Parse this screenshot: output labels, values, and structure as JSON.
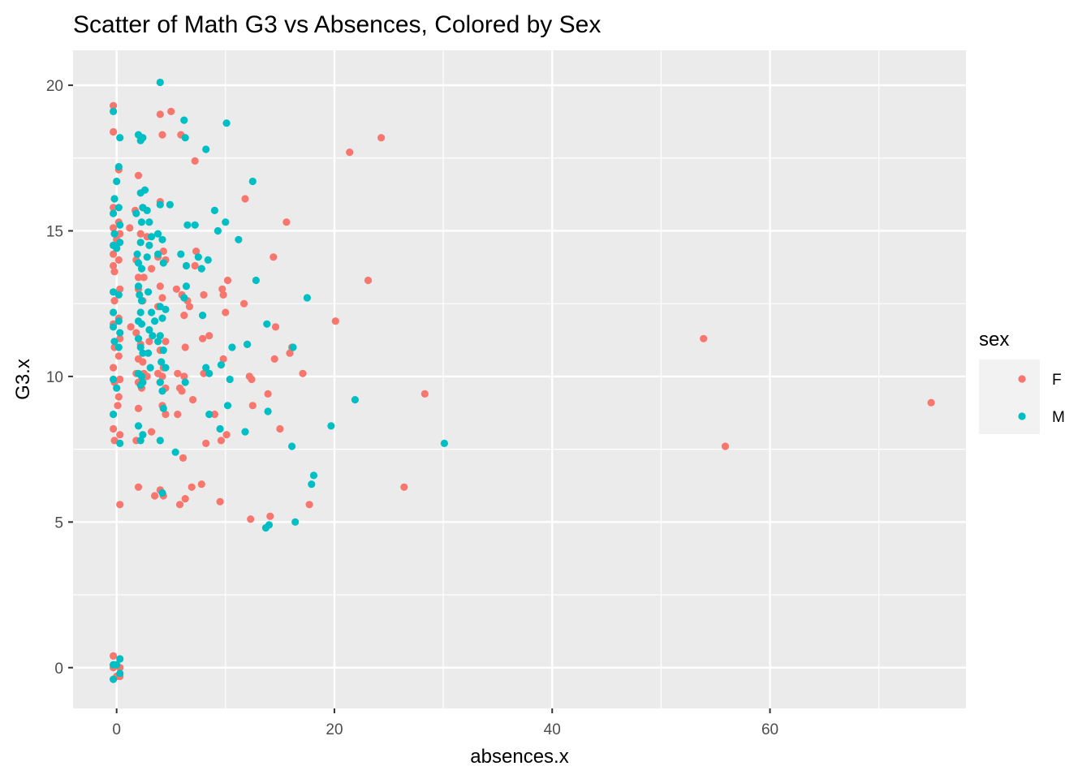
{
  "chart_data": {
    "type": "scatter",
    "title": "Scatter of Math G3 vs Absences, Colored by Sex",
    "xlabel": "absences.x",
    "ylabel": "G3.x",
    "xlim": [
      -4,
      78
    ],
    "ylim": [
      -1.4,
      21.2
    ],
    "x_ticks": [
      0,
      20,
      40,
      60
    ],
    "y_ticks": [
      0,
      5,
      10,
      15,
      20
    ],
    "grid": true,
    "background": "#EBEBEB",
    "legend": {
      "title": "sex",
      "position": "right"
    },
    "series": [
      {
        "name": "F",
        "color": "#F8766D",
        "points": [
          [
            -0.3,
            19.3
          ],
          [
            -0.3,
            18.4
          ],
          [
            0.2,
            17.1
          ],
          [
            -0.3,
            15.8
          ],
          [
            0.2,
            15.3
          ],
          [
            -0.3,
            15.1
          ],
          [
            0.3,
            14.9
          ],
          [
            0.0,
            14.7
          ],
          [
            -0.3,
            14.2
          ],
          [
            0.2,
            14.0
          ],
          [
            -0.3,
            13.8
          ],
          [
            -0.2,
            13.6
          ],
          [
            0.3,
            13.0
          ],
          [
            -0.2,
            12.6
          ],
          [
            0.2,
            12.0
          ],
          [
            -0.3,
            11.8
          ],
          [
            0.3,
            11.3
          ],
          [
            -0.2,
            11.0
          ],
          [
            0.2,
            10.7
          ],
          [
            -0.3,
            10.3
          ],
          [
            0.3,
            9.9
          ],
          [
            -0.2,
            9.8
          ],
          [
            0.2,
            9.3
          ],
          [
            0.1,
            9.0
          ],
          [
            -0.3,
            8.2
          ],
          [
            0.3,
            8.0
          ],
          [
            -0.2,
            7.8
          ],
          [
            0.3,
            5.6
          ],
          [
            -0.3,
            0.4
          ],
          [
            0.3,
            -0.3
          ],
          [
            0.0,
            -0.3
          ],
          [
            -0.3,
            0.0
          ],
          [
            0.3,
            0.0
          ],
          [
            1.2,
            15.1
          ],
          [
            1.7,
            15.7
          ],
          [
            2.0,
            16.9
          ],
          [
            2.2,
            14.9
          ],
          [
            2.4,
            15.8
          ],
          [
            1.8,
            14.0
          ],
          [
            2.0,
            13.4
          ],
          [
            2.5,
            13.4
          ],
          [
            2.0,
            13.0
          ],
          [
            2.4,
            12.6
          ],
          [
            1.3,
            11.7
          ],
          [
            1.8,
            11.5
          ],
          [
            2.2,
            11.1
          ],
          [
            2.0,
            10.6
          ],
          [
            2.4,
            10.5
          ],
          [
            1.8,
            10.1
          ],
          [
            2.5,
            10.1
          ],
          [
            2.0,
            9.8
          ],
          [
            2.3,
            9.6
          ],
          [
            2.0,
            8.9
          ],
          [
            1.8,
            7.8
          ],
          [
            2.0,
            6.2
          ],
          [
            2.8,
            14.8
          ],
          [
            3.2,
            13.7
          ],
          [
            3.0,
            11.2
          ],
          [
            2.8,
            10.0
          ],
          [
            3.2,
            8.1
          ],
          [
            3.5,
            5.9
          ],
          [
            4.0,
            19.0
          ],
          [
            4.2,
            18.3
          ],
          [
            4.0,
            16.0
          ],
          [
            4.3,
            14.3
          ],
          [
            3.8,
            14.1
          ],
          [
            4.5,
            14.0
          ],
          [
            4.0,
            13.1
          ],
          [
            4.2,
            12.7
          ],
          [
            3.8,
            12.4
          ],
          [
            4.5,
            11.2
          ],
          [
            4.0,
            10.9
          ],
          [
            4.3,
            10.3
          ],
          [
            3.8,
            10.1
          ],
          [
            4.2,
            10.0
          ],
          [
            4.0,
            9.8
          ],
          [
            4.5,
            9.6
          ],
          [
            4.2,
            9.0
          ],
          [
            4.5,
            8.7
          ],
          [
            4.0,
            6.1
          ],
          [
            4.3,
            5.9
          ],
          [
            5.0,
            19.1
          ],
          [
            5.5,
            13.0
          ],
          [
            5.6,
            10.1
          ],
          [
            5.8,
            9.6
          ],
          [
            5.6,
            8.7
          ],
          [
            5.8,
            5.6
          ],
          [
            5.9,
            18.3
          ],
          [
            6.0,
            12.8
          ],
          [
            6.2,
            12.1
          ],
          [
            6.3,
            11.0
          ],
          [
            6.2,
            10.0
          ],
          [
            6.0,
            9.5
          ],
          [
            6.1,
            7.2
          ],
          [
            6.3,
            5.8
          ],
          [
            6.5,
            12.6
          ],
          [
            6.7,
            12.4
          ],
          [
            6.9,
            6.2
          ],
          [
            7.0,
            9.2
          ],
          [
            7.2,
            17.4
          ],
          [
            7.3,
            14.3
          ],
          [
            7.2,
            13.8
          ],
          [
            7.9,
            11.3
          ],
          [
            7.8,
            6.3
          ],
          [
            8.0,
            12.8
          ],
          [
            8.0,
            10.1
          ],
          [
            8.2,
            7.7
          ],
          [
            8.5,
            11.4
          ],
          [
            9.0,
            8.7
          ],
          [
            9.5,
            5.7
          ],
          [
            9.6,
            7.8
          ],
          [
            9.7,
            13.0
          ],
          [
            9.8,
            12.8
          ],
          [
            9.8,
            10.6
          ],
          [
            10.0,
            12.2
          ],
          [
            10.1,
            8.0
          ],
          [
            10.2,
            13.3
          ],
          [
            11.7,
            12.5
          ],
          [
            11.8,
            16.1
          ],
          [
            12.0,
            11.1
          ],
          [
            12.2,
            10.0
          ],
          [
            12.4,
            9.9
          ],
          [
            12.5,
            9.0
          ],
          [
            12.3,
            5.1
          ],
          [
            13.9,
            9.4
          ],
          [
            14.1,
            5.2
          ],
          [
            14.4,
            14.1
          ],
          [
            14.6,
            11.7
          ],
          [
            14.5,
            10.6
          ],
          [
            15.0,
            8.2
          ],
          [
            15.6,
            15.3
          ],
          [
            15.9,
            10.8
          ],
          [
            16.1,
            11.0
          ],
          [
            17.1,
            10.1
          ],
          [
            17.7,
            5.6
          ],
          [
            20.1,
            11.9
          ],
          [
            21.4,
            17.7
          ],
          [
            23.1,
            13.3
          ],
          [
            24.3,
            18.2
          ],
          [
            26.4,
            6.2
          ],
          [
            28.3,
            9.4
          ],
          [
            53.9,
            11.3
          ],
          [
            55.9,
            7.6
          ],
          [
            74.8,
            9.1
          ]
        ]
      },
      {
        "name": "M",
        "color": "#00BFC4",
        "points": [
          [
            -0.3,
            19.1
          ],
          [
            0.2,
            17.2
          ],
          [
            0.3,
            18.2
          ],
          [
            0.0,
            16.7
          ],
          [
            -0.2,
            16.1
          ],
          [
            0.2,
            15.8
          ],
          [
            -0.3,
            15.6
          ],
          [
            0.3,
            15.2
          ],
          [
            -0.2,
            14.9
          ],
          [
            0.3,
            14.6
          ],
          [
            -0.3,
            14.5
          ],
          [
            0.0,
            14.4
          ],
          [
            -0.3,
            12.9
          ],
          [
            0.2,
            12.8
          ],
          [
            -0.3,
            12.2
          ],
          [
            0.2,
            11.9
          ],
          [
            -0.3,
            11.7
          ],
          [
            0.3,
            11.5
          ],
          [
            -0.2,
            11.2
          ],
          [
            0.2,
            11.0
          ],
          [
            -0.3,
            9.9
          ],
          [
            0.0,
            9.6
          ],
          [
            -0.3,
            8.7
          ],
          [
            0.3,
            7.7
          ],
          [
            -0.3,
            -0.4
          ],
          [
            0.3,
            0.3
          ],
          [
            0.0,
            0.1
          ],
          [
            -0.3,
            0.1
          ],
          [
            0.3,
            -0.2
          ],
          [
            2.0,
            18.3
          ],
          [
            2.4,
            18.2
          ],
          [
            2.2,
            18.1
          ],
          [
            2.2,
            16.3
          ],
          [
            2.6,
            16.4
          ],
          [
            2.4,
            15.8
          ],
          [
            1.8,
            15.6
          ],
          [
            2.3,
            15.3
          ],
          [
            2.2,
            14.6
          ],
          [
            1.9,
            14.2
          ],
          [
            2.0,
            13.9
          ],
          [
            2.3,
            13.7
          ],
          [
            2.0,
            13.1
          ],
          [
            2.1,
            12.8
          ],
          [
            2.3,
            12.6
          ],
          [
            2.2,
            12.2
          ],
          [
            2.0,
            11.9
          ],
          [
            2.3,
            11.8
          ],
          [
            2.0,
            11.3
          ],
          [
            2.2,
            11.0
          ],
          [
            2.4,
            10.8
          ],
          [
            2.0,
            10.1
          ],
          [
            2.3,
            10.0
          ],
          [
            2.2,
            9.7
          ],
          [
            2.4,
            9.8
          ],
          [
            2.0,
            8.3
          ],
          [
            2.4,
            8.0
          ],
          [
            2.2,
            7.8
          ],
          [
            2.8,
            15.7
          ],
          [
            3.0,
            15.3
          ],
          [
            3.2,
            14.8
          ],
          [
            3.0,
            14.5
          ],
          [
            2.8,
            14.1
          ],
          [
            2.9,
            12.9
          ],
          [
            3.2,
            12.2
          ],
          [
            3.0,
            11.6
          ],
          [
            3.3,
            11.4
          ],
          [
            2.9,
            10.8
          ],
          [
            3.1,
            10.3
          ],
          [
            3.5,
            11.9
          ],
          [
            3.8,
            14.9
          ],
          [
            4.0,
            20.1
          ],
          [
            4.2,
            14.7
          ],
          [
            4.0,
            15.9
          ],
          [
            3.8,
            14.2
          ],
          [
            4.3,
            13.9
          ],
          [
            4.0,
            12.4
          ],
          [
            4.5,
            12.3
          ],
          [
            4.2,
            12.0
          ],
          [
            4.0,
            11.4
          ],
          [
            3.8,
            11.2
          ],
          [
            4.3,
            10.9
          ],
          [
            4.1,
            10.5
          ],
          [
            4.5,
            10.3
          ],
          [
            4.0,
            9.8
          ],
          [
            4.2,
            9.5
          ],
          [
            4.3,
            8.9
          ],
          [
            4.0,
            7.8
          ],
          [
            4.2,
            6.0
          ],
          [
            4.9,
            15.9
          ],
          [
            5.4,
            7.4
          ],
          [
            5.9,
            14.2
          ],
          [
            6.2,
            18.8
          ],
          [
            6.3,
            18.2
          ],
          [
            6.5,
            15.2
          ],
          [
            6.4,
            13.8
          ],
          [
            6.2,
            12.7
          ],
          [
            6.4,
            13.1
          ],
          [
            6.3,
            9.8
          ],
          [
            7.2,
            15.2
          ],
          [
            7.5,
            14.1
          ],
          [
            7.8,
            13.7
          ],
          [
            7.9,
            12.1
          ],
          [
            8.2,
            17.8
          ],
          [
            8.4,
            14.0
          ],
          [
            8.2,
            10.3
          ],
          [
            8.5,
            10.1
          ],
          [
            8.5,
            8.7
          ],
          [
            9.0,
            15.7
          ],
          [
            9.3,
            15.0
          ],
          [
            9.6,
            10.4
          ],
          [
            9.5,
            8.2
          ],
          [
            10.1,
            18.7
          ],
          [
            10.0,
            15.3
          ],
          [
            10.2,
            9.0
          ],
          [
            10.4,
            9.9
          ],
          [
            10.6,
            11.0
          ],
          [
            11.2,
            14.7
          ],
          [
            11.8,
            8.1
          ],
          [
            12.0,
            11.1
          ],
          [
            12.5,
            16.7
          ],
          [
            12.8,
            13.3
          ],
          [
            13.8,
            11.8
          ],
          [
            13.9,
            8.8
          ],
          [
            13.7,
            4.8
          ],
          [
            14.0,
            4.9
          ],
          [
            16.2,
            11.0
          ],
          [
            16.1,
            7.6
          ],
          [
            16.4,
            5.0
          ],
          [
            17.5,
            12.7
          ],
          [
            17.9,
            6.3
          ],
          [
            18.1,
            6.6
          ],
          [
            19.7,
            8.3
          ],
          [
            21.9,
            9.2
          ],
          [
            30.1,
            7.7
          ]
        ]
      }
    ]
  }
}
